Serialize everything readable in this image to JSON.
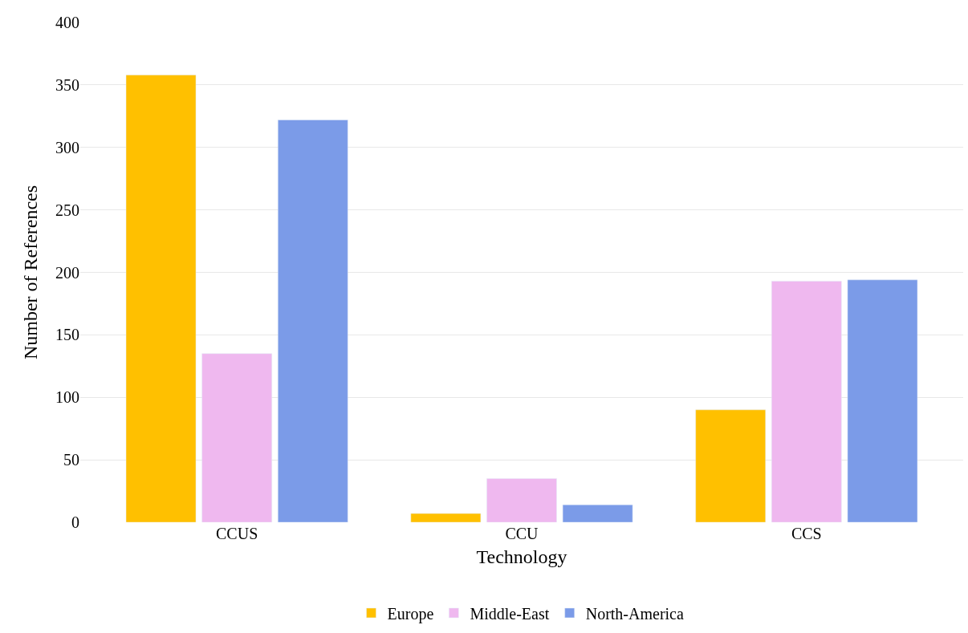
{
  "chart_data": {
    "type": "bar",
    "xlabel": "Technology",
    "ylabel": "Number of References",
    "categories": [
      "CCUS",
      "CCU",
      "CCS"
    ],
    "series": [
      {
        "name": "Europe",
        "color": "#ffc000",
        "values": [
          358,
          7,
          90
        ]
      },
      {
        "name": "Middle-East",
        "color": "#efb8ef",
        "values": [
          135,
          35,
          193
        ]
      },
      {
        "name": "North-America",
        "color": "#7b9be8",
        "values": [
          322,
          14,
          194
        ]
      }
    ],
    "ylim": [
      0,
      400
    ],
    "yticks": [
      0,
      50,
      100,
      150,
      200,
      250,
      300,
      350,
      400
    ],
    "grid": "y",
    "legend": "bottom"
  }
}
